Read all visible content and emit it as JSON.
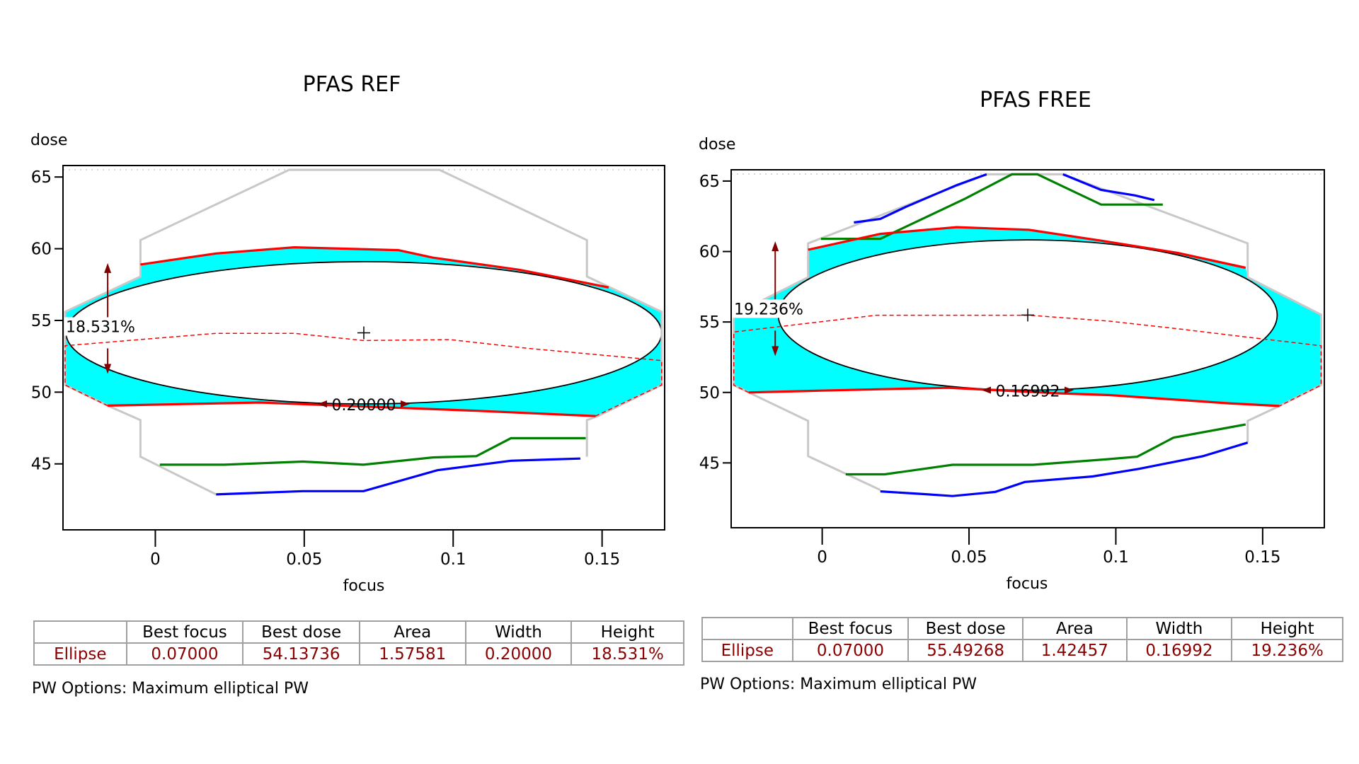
{
  "colors": {
    "window": "#c8c8c8",
    "fill": "#00ffff",
    "red": "#ff0000",
    "green": "#008000",
    "blue": "#0000ff",
    "annotation": "#800000",
    "value_text": "#8b0000"
  },
  "table_headers": [
    "",
    "Best focus",
    "Best dose",
    "Area",
    "Width",
    "Height"
  ],
  "chart_data": [
    {
      "type": "line",
      "title": "PFAS REF",
      "xlabel": "focus",
      "ylabel": "dose",
      "xlim": [
        -0.031,
        0.171
      ],
      "ylim": [
        40.4,
        65.8
      ],
      "xticks": [
        0,
        0.05,
        0.1,
        0.15
      ],
      "xtick_labels": [
        "0",
        "0.05",
        "0.1",
        "0.15"
      ],
      "yticks": [
        45,
        50,
        55,
        60,
        65
      ],
      "ytick_labels": [
        "45",
        "50",
        "55",
        "60",
        "65"
      ],
      "grid": false,
      "ellipse": {
        "center": [
          0.07,
          54.137
        ],
        "width": 0.2,
        "height_dose": 9.92
      },
      "fill_region": [
        [
          -0.005,
          58.9
        ],
        [
          0.0204,
          59.67
        ],
        [
          0.0466,
          60.1
        ],
        [
          0.0816,
          59.9
        ],
        [
          0.0932,
          59.38
        ],
        [
          0.1223,
          58.53
        ],
        [
          0.1522,
          57.3
        ],
        [
          0.17,
          55.6
        ],
        [
          0.17,
          50.5
        ],
        [
          0.1478,
          48.33
        ],
        [
          0.1078,
          48.7
        ],
        [
          0.083,
          48.9
        ],
        [
          0.035,
          49.28
        ],
        [
          -0.016,
          49.06
        ],
        [
          -0.0303,
          50.5
        ],
        [
          -0.0303,
          55.6
        ],
        [
          -0.005,
          58.06
        ]
      ],
      "series": [
        {
          "role": "window",
          "color": "#c8c8c8",
          "dashed": false,
          "points": [
            [
              0.0204,
              42.87
            ],
            [
              -0.005,
              45.5
            ],
            [
              -0.005,
              48.05
            ],
            [
              -0.016,
              49.06
            ],
            [
              -0.0303,
              50.5
            ],
            [
              -0.0303,
              55.6
            ],
            [
              -0.005,
              58.06
            ],
            [
              -0.005,
              60.6
            ],
            [
              0.0449,
              65.5
            ],
            [
              0.0954,
              65.5
            ],
            [
              0.1449,
              60.6
            ],
            [
              0.1449,
              58.06
            ],
            [
              0.17,
              55.6
            ],
            [
              0.17,
              50.5
            ],
            [
              0.1486,
              48.33
            ],
            [
              0.1449,
              48.05
            ],
            [
              0.1449,
              45.5
            ]
          ]
        },
        {
          "role": "upper",
          "color": "#ff0000",
          "dashed": false,
          "points": [
            [
              -0.005,
              58.9
            ],
            [
              0.0204,
              59.67
            ],
            [
              0.0466,
              60.1
            ],
            [
              0.0816,
              59.9
            ],
            [
              0.0932,
              59.38
            ],
            [
              0.1223,
              58.53
            ],
            [
              0.1522,
              57.3
            ]
          ]
        },
        {
          "role": "lower",
          "color": "#ff0000",
          "dashed": false,
          "points": [
            [
              -0.016,
              49.06
            ],
            [
              0.035,
              49.28
            ],
            [
              0.083,
              48.9
            ],
            [
              0.1078,
              48.7
            ],
            [
              0.1478,
              48.33
            ]
          ]
        },
        {
          "role": "center",
          "color": "#ff0000",
          "dashed": true,
          "points": [
            [
              -0.016,
              49.06
            ],
            [
              -0.0303,
              50.5
            ],
            [
              -0.0303,
              53.24
            ],
            [
              0.0204,
              54.1
            ],
            [
              0.0466,
              54.1
            ],
            [
              0.0699,
              53.6
            ],
            [
              0.099,
              53.66
            ],
            [
              0.1253,
              53.05
            ],
            [
              0.17,
              52.2
            ],
            [
              0.17,
              50.5
            ],
            [
              0.1478,
              48.33
            ]
          ]
        },
        {
          "role": "green",
          "color": "#008000",
          "dashed": false,
          "points": [
            [
              0.0015,
              44.94
            ],
            [
              0.0233,
              44.94
            ],
            [
              0.0495,
              45.16
            ],
            [
              0.0699,
              44.94
            ],
            [
              0.0932,
              45.45
            ],
            [
              0.1078,
              45.54
            ],
            [
              0.1194,
              46.79
            ],
            [
              0.1445,
              46.79
            ]
          ]
        },
        {
          "role": "blue",
          "color": "#0000ff",
          "dashed": false,
          "points": [
            [
              0.0204,
              42.87
            ],
            [
              0.0495,
              43.1
            ],
            [
              0.0699,
              43.1
            ],
            [
              0.0947,
              44.56
            ],
            [
              0.1194,
              45.22
            ],
            [
              0.1427,
              45.37
            ]
          ]
        }
      ],
      "annotations": {
        "height": "18.531%",
        "width": "0.20000"
      },
      "table": {
        "row_label": "Ellipse",
        "best_focus": "0.07000",
        "best_dose": "54.13736",
        "area": "1.57581",
        "width": "0.20000",
        "height": "18.531%"
      },
      "options": "PW Options: Maximum elliptical PW"
    },
    {
      "type": "line",
      "title": "PFAS FREE",
      "xlabel": "focus",
      "ylabel": "dose",
      "xlim": [
        -0.031,
        0.171
      ],
      "ylim": [
        40.4,
        65.8
      ],
      "xticks": [
        0,
        0.05,
        0.1,
        0.15
      ],
      "xtick_labels": [
        "0",
        "0.05",
        "0.1",
        "0.15"
      ],
      "yticks": [
        45,
        50,
        55,
        60,
        65
      ],
      "ytick_labels": [
        "45",
        "50",
        "55",
        "60",
        "65"
      ],
      "grid": false,
      "ellipse": {
        "center": [
          0.07,
          55.493
        ],
        "width": 0.16992,
        "height_dose": 10.66
      },
      "fill_region": [
        [
          -0.0048,
          60.13
        ],
        [
          0.0198,
          61.25
        ],
        [
          0.0458,
          61.73
        ],
        [
          0.0704,
          61.54
        ],
        [
          0.095,
          60.77
        ],
        [
          0.121,
          59.9
        ],
        [
          0.1442,
          58.85
        ],
        [
          0.1449,
          58.17
        ],
        [
          0.1699,
          55.52
        ],
        [
          0.1699,
          50.52
        ],
        [
          0.1557,
          49.04
        ],
        [
          0.1384,
          49.23
        ],
        [
          0.1152,
          49.56
        ],
        [
          0.0979,
          49.81
        ],
        [
          0.0805,
          49.94
        ],
        [
          0.043,
          50.33
        ],
        [
          0.0241,
          50.25
        ],
        [
          -0.0004,
          50.13
        ],
        [
          -0.025,
          50.0
        ],
        [
          -0.0301,
          50.52
        ],
        [
          -0.0301,
          55.52
        ],
        [
          -0.0048,
          58.17
        ]
      ],
      "series": [
        {
          "role": "window",
          "color": "#c8c8c8",
          "dashed": false,
          "points": [
            [
              0.0198,
              43.08
            ],
            [
              -0.0048,
              45.48
            ],
            [
              -0.0048,
              47.98
            ],
            [
              -0.025,
              50.0
            ],
            [
              -0.0301,
              50.52
            ],
            [
              -0.0301,
              55.52
            ],
            [
              -0.0048,
              58.17
            ],
            [
              -0.0048,
              60.58
            ],
            [
              0.056,
              65.48
            ],
            [
              0.082,
              65.48
            ],
            [
              0.1449,
              60.58
            ],
            [
              0.1449,
              58.17
            ],
            [
              0.1699,
              55.52
            ],
            [
              0.1699,
              50.52
            ],
            [
              0.1557,
              49.04
            ],
            [
              0.1449,
              47.98
            ],
            [
              0.1449,
              46.44
            ]
          ]
        },
        {
          "role": "blue-upper",
          "color": "#0000ff",
          "dashed": false,
          "points": [
            [
              0.0108,
              62.06
            ],
            [
              0.0198,
              62.31
            ],
            [
              0.0285,
              63.17
            ],
            [
              0.0458,
              64.71
            ],
            [
              0.056,
              65.48
            ]
          ]
        },
        {
          "role": "blue-upper-right",
          "color": "#0000ff",
          "dashed": false,
          "points": [
            [
              0.082,
              65.48
            ],
            [
              0.095,
              64.37
            ],
            [
              0.1066,
              63.98
            ],
            [
              0.1131,
              63.65
            ]
          ]
        },
        {
          "role": "green-upper",
          "color": "#008000",
          "dashed": false,
          "points": [
            [
              -0.0004,
              60.9
            ],
            [
              0.0198,
              60.9
            ],
            [
              0.0487,
              63.75
            ],
            [
              0.0646,
              65.48
            ],
            [
              0.0733,
              65.48
            ],
            [
              0.095,
              63.33
            ],
            [
              0.116,
              63.33
            ]
          ]
        },
        {
          "role": "upper",
          "color": "#ff0000",
          "dashed": false,
          "points": [
            [
              -0.0048,
              60.13
            ],
            [
              0.0198,
              61.25
            ],
            [
              0.0458,
              61.73
            ],
            [
              0.0704,
              61.54
            ],
            [
              0.095,
              60.77
            ],
            [
              0.121,
              59.9
            ],
            [
              0.1442,
              58.85
            ]
          ]
        },
        {
          "role": "lower",
          "color": "#ff0000",
          "dashed": false,
          "points": [
            [
              -0.025,
              50.0
            ],
            [
              -0.0004,
              50.13
            ],
            [
              0.0241,
              50.25
            ],
            [
              0.043,
              50.33
            ],
            [
              0.0805,
              49.94
            ],
            [
              0.0979,
              49.81
            ],
            [
              0.1152,
              49.56
            ],
            [
              0.1384,
              49.23
            ],
            [
              0.1557,
              49.04
            ]
          ]
        },
        {
          "role": "center",
          "color": "#ff0000",
          "dashed": true,
          "points": [
            [
              -0.025,
              50.0
            ],
            [
              -0.0301,
              50.52
            ],
            [
              -0.0301,
              54.29
            ],
            [
              0.0184,
              55.48
            ],
            [
              0.0704,
              55.48
            ],
            [
              0.0979,
              55.06
            ],
            [
              0.121,
              54.52
            ],
            [
              0.1442,
              53.94
            ],
            [
              0.1699,
              53.31
            ],
            [
              0.1699,
              50.52
            ],
            [
              0.1557,
              49.04
            ]
          ]
        },
        {
          "role": "green",
          "color": "#008000",
          "dashed": false,
          "points": [
            [
              0.008,
              44.19
            ],
            [
              0.0213,
              44.19
            ],
            [
              0.0444,
              44.87
            ],
            [
              0.0719,
              44.87
            ],
            [
              0.0965,
              45.25
            ],
            [
              0.1073,
              45.44
            ],
            [
              0.1196,
              46.79
            ],
            [
              0.1442,
              47.73
            ]
          ]
        },
        {
          "role": "blue",
          "color": "#0000ff",
          "dashed": false,
          "points": [
            [
              0.0198,
              42.98
            ],
            [
              0.0343,
              42.79
            ],
            [
              0.0444,
              42.65
            ],
            [
              0.0589,
              42.94
            ],
            [
              0.069,
              43.65
            ],
            [
              0.0921,
              44.04
            ],
            [
              0.108,
              44.58
            ],
            [
              0.1297,
              45.48
            ],
            [
              0.1449,
              46.44
            ]
          ]
        }
      ],
      "annotations": {
        "height": "19.236%",
        "width": "0.16992"
      },
      "table": {
        "row_label": "Ellipse",
        "best_focus": "0.07000",
        "best_dose": "55.49268",
        "area": "1.42457",
        "width": "0.16992",
        "height": "19.236%"
      },
      "options": "PW Options: Maximum elliptical PW"
    }
  ]
}
